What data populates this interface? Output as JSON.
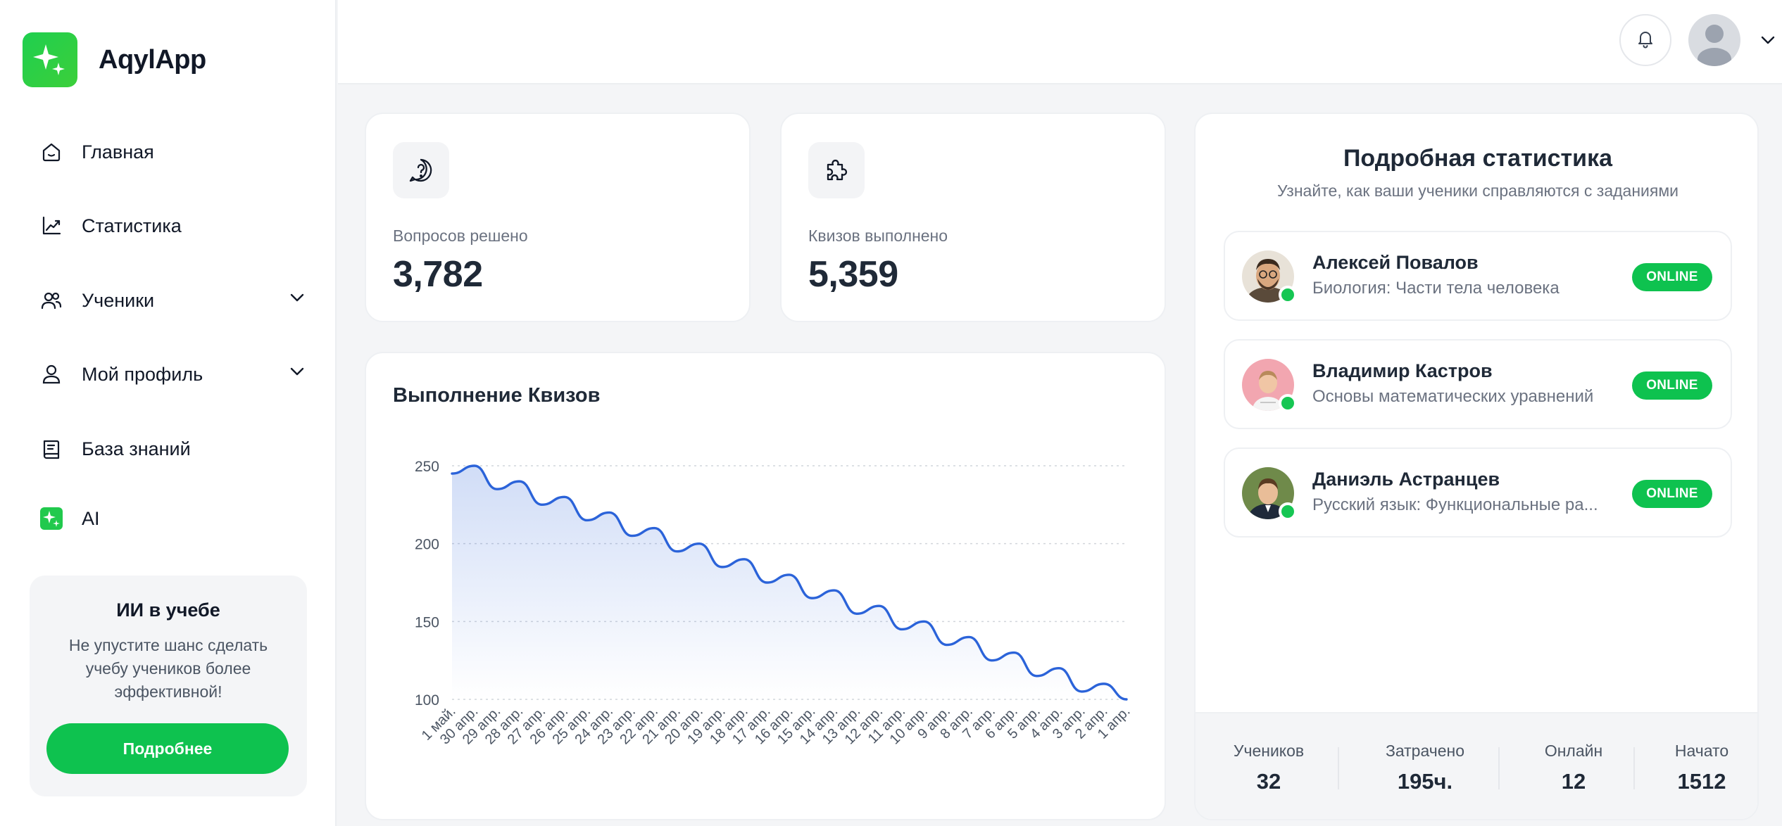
{
  "app": {
    "name": "AqylApp"
  },
  "sidebar": {
    "items": [
      {
        "label": "Главная",
        "icon": "home-icon",
        "has_children": false
      },
      {
        "label": "Статистика",
        "icon": "chart-icon",
        "has_children": false
      },
      {
        "label": "Ученики",
        "icon": "users-icon",
        "has_children": true
      },
      {
        "label": "Мой профиль",
        "icon": "user-icon",
        "has_children": true
      },
      {
        "label": "База знаний",
        "icon": "book-icon",
        "has_children": false
      },
      {
        "label": "AI",
        "icon": "sparkle-icon",
        "has_children": false
      }
    ],
    "promo": {
      "title": "ИИ в учебе",
      "text": "Не упустите шанс сделать учебу учеников более эффективной!",
      "button": "Подробнее"
    }
  },
  "stats": [
    {
      "label": "Вопросов решено",
      "value": "3,782",
      "icon": "question-bubble-icon"
    },
    {
      "label": "Квизов выполнено",
      "value": "5,359",
      "icon": "puzzle-icon"
    }
  ],
  "chart_card": {
    "title": "Выполнение Квизов"
  },
  "chart_data": {
    "type": "area",
    "title": "Выполнение Квизов",
    "xlabel": "",
    "ylabel": "",
    "ylim": [
      100,
      250
    ],
    "y_ticks": [
      "100",
      "150",
      "200",
      "250"
    ],
    "grid": true,
    "legend": "none",
    "color": "#2b63d9",
    "x": [
      "1 май.",
      "30 апр.",
      "29 апр.",
      "28 апр.",
      "27 апр.",
      "26 апр.",
      "25 апр.",
      "24 апр.",
      "23 апр.",
      "22 апр.",
      "21 апр.",
      "20 апр.",
      "19 апр.",
      "18 апр.",
      "17 апр.",
      "16 апр.",
      "15 апр.",
      "14 апр.",
      "13 апр.",
      "12 апр.",
      "11 апр.",
      "10 апр.",
      "9 апр.",
      "8 апр.",
      "7 апр.",
      "6 апр.",
      "5 апр.",
      "4 апр.",
      "3 апр.",
      "2 апр.",
      "1 апр."
    ],
    "values": [
      245,
      250,
      235,
      240,
      225,
      230,
      215,
      220,
      205,
      210,
      195,
      200,
      185,
      190,
      175,
      180,
      165,
      170,
      155,
      160,
      145,
      150,
      135,
      140,
      125,
      130,
      115,
      120,
      105,
      110,
      100
    ]
  },
  "detail": {
    "title": "Подробная статистика",
    "subtitle": "Узнайте, как ваши ученики справляются с заданиями",
    "students": [
      {
        "name": "Алексей Повалов",
        "subject": "Биология: Части тела человека",
        "status": "ONLINE"
      },
      {
        "name": "Владимир Кастров",
        "subject": "Основы математических уравнений",
        "status": "ONLINE"
      },
      {
        "name": "Даниэль Астранцев",
        "subject": "Русский язык: Функциональные ра...",
        "status": "ONLINE"
      }
    ],
    "footer": [
      {
        "label": "Учеников",
        "value": "32"
      },
      {
        "label": "Затрачено",
        "value": "195ч."
      },
      {
        "label": "Онлайн",
        "value": "12"
      },
      {
        "label": "Начато",
        "value": "1512"
      }
    ]
  }
}
